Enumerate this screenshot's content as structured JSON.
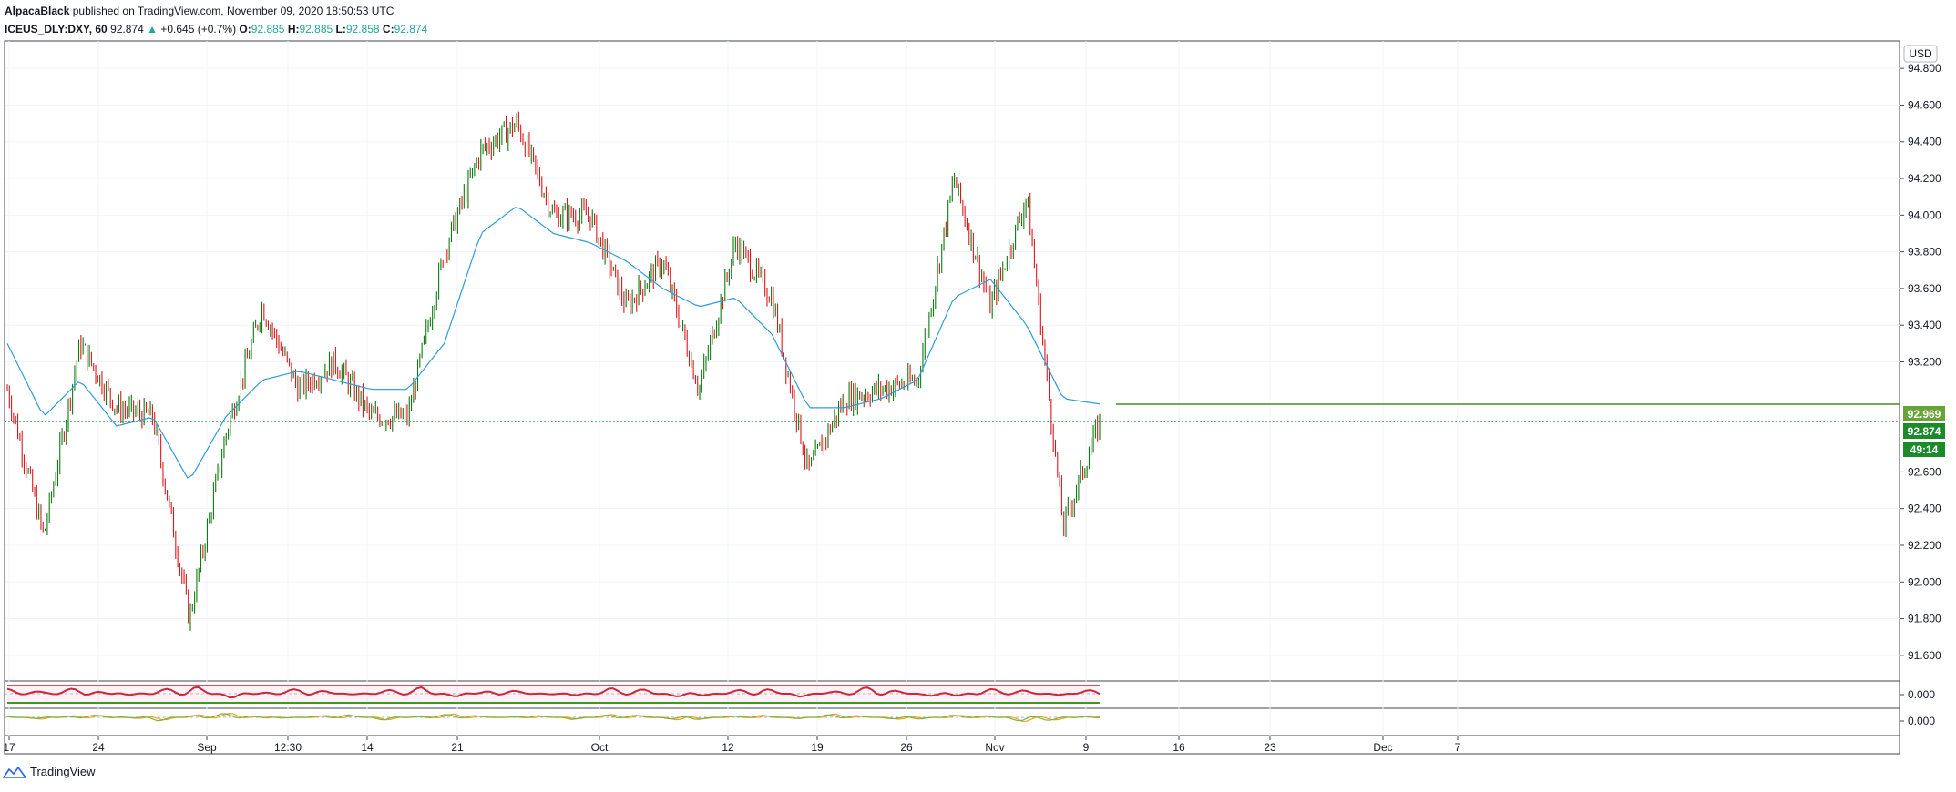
{
  "header": {
    "author": "AlpacaBlack",
    "published_text": "published on TradingView.com, November 09, 2020 18:50:53 UTC",
    "symbol": "ICEUS_DLY:DXY, 60",
    "last": "92.874",
    "change_arrow": "▲",
    "change": "+0.645 (+0.7%)",
    "o_label": "O:",
    "o_val": "92.885",
    "h_label": "H:",
    "h_val": "92.885",
    "l_label": "L:",
    "l_val": "92.858",
    "c_label": "C:",
    "c_val": "92.874"
  },
  "footer": {
    "logo_text": "TradingView",
    "logo_icon": "tradingview-logo-icon"
  },
  "currency": "USD",
  "price_tags": {
    "target": "92.969",
    "last": "92.874",
    "countdown": "49:14"
  },
  "colors": {
    "up": "#26a69a",
    "candle_up": "#0f7a10",
    "candle_down": "#e0151a",
    "ma": "#2f9bdc",
    "target_line": "#4b8b1d",
    "tag_target": "#6aa337",
    "tag_last": "#1a8a2a"
  },
  "chart_data": [
    {
      "type": "line",
      "title": "",
      "yticks": [
        "94.800",
        "94.600",
        "94.400",
        "94.200",
        "94.000",
        "93.800",
        "93.600",
        "93.400",
        "93.200",
        "92.600",
        "92.400",
        "92.200",
        "92.000",
        "91.800",
        "91.600"
      ],
      "ylim": [
        91.5,
        94.9
      ],
      "xticks": [
        "17",
        "24",
        "Sep",
        "12:30",
        "14",
        "21",
        "Oct",
        "12",
        "19",
        "26",
        "Nov",
        "9",
        "16",
        "23",
        "Dec",
        "7"
      ],
      "series": [
        {
          "x": [
            "Aug 17",
            "Aug 21",
            "Aug 24",
            "Aug 27",
            "Aug 31",
            "Sep 1",
            "Sep 4",
            "Sep 8",
            "Sep 11",
            "Sep 14",
            "Sep 17",
            "Sep 21",
            "Sep 23",
            "Sep 25",
            "Sep 28",
            "Sep 30",
            "Oct 2",
            "Oct 6",
            "Oct 9",
            "Oct 13",
            "Oct 15",
            "Oct 19",
            "Oct 21",
            "Oct 23",
            "Oct 26",
            "Oct 28",
            "Oct 30",
            "Nov 2",
            "Nov 4",
            "Nov 6",
            "Nov 9"
          ],
          "values": [
            93.05,
            92.25,
            93.3,
            92.95,
            92.9,
            91.8,
            92.8,
            93.5,
            93.05,
            93.2,
            92.9,
            92.9,
            93.8,
            94.35,
            94.5,
            94.0,
            94.0,
            93.5,
            93.75,
            93.05,
            93.85,
            93.55,
            92.6,
            93.0,
            93.05,
            93.1,
            94.2,
            93.5,
            94.1,
            92.3,
            92.87
          ]
        },
        {
          "values": [
            93.3,
            92.9,
            93.1,
            92.85,
            92.9,
            92.55,
            92.9,
            93.1,
            93.15,
            93.1,
            93.05,
            93.05,
            93.3,
            93.9,
            94.05,
            93.9,
            93.85,
            93.75,
            93.6,
            93.5,
            93.55,
            93.35,
            92.95,
            92.95,
            93.0,
            93.1,
            93.55,
            93.65,
            93.4,
            93.0,
            92.97
          ]
        }
      ],
      "price_lines": {
        "target": 92.969,
        "last": 92.874
      }
    },
    {
      "type": "line",
      "ytick": "0.000",
      "series": [
        {
          "values": [
            0.6,
            0.2,
            0.8,
            -0.4,
            0.5,
            0.9,
            -0.6,
            0.3,
            0.7,
            -0.2,
            0.4,
            0.8,
            -0.5,
            0.6,
            0.1,
            -0.3,
            0.7,
            0.5,
            -0.6,
            0.2,
            0.8,
            -0.4,
            0.3,
            0.9,
            0.0,
            -0.5,
            0.6,
            0.4,
            -0.2,
            0.7
          ]
        }
      ]
    },
    {
      "type": "line",
      "ytick": "0.000",
      "series": [
        {
          "values": [
            0.2,
            -0.3,
            0.4,
            0.1,
            -0.5,
            0.3,
            0.6,
            -0.2,
            0.1,
            0.4,
            -0.4,
            0.2,
            0.5,
            -0.1,
            0.3,
            -0.3,
            0.4,
            0.2,
            -0.5,
            0.1,
            0.3,
            -0.2,
            0.5,
            0.0,
            -0.4,
            0.3,
            0.2,
            -0.6,
            -0.3,
            0.4
          ]
        }
      ]
    }
  ]
}
